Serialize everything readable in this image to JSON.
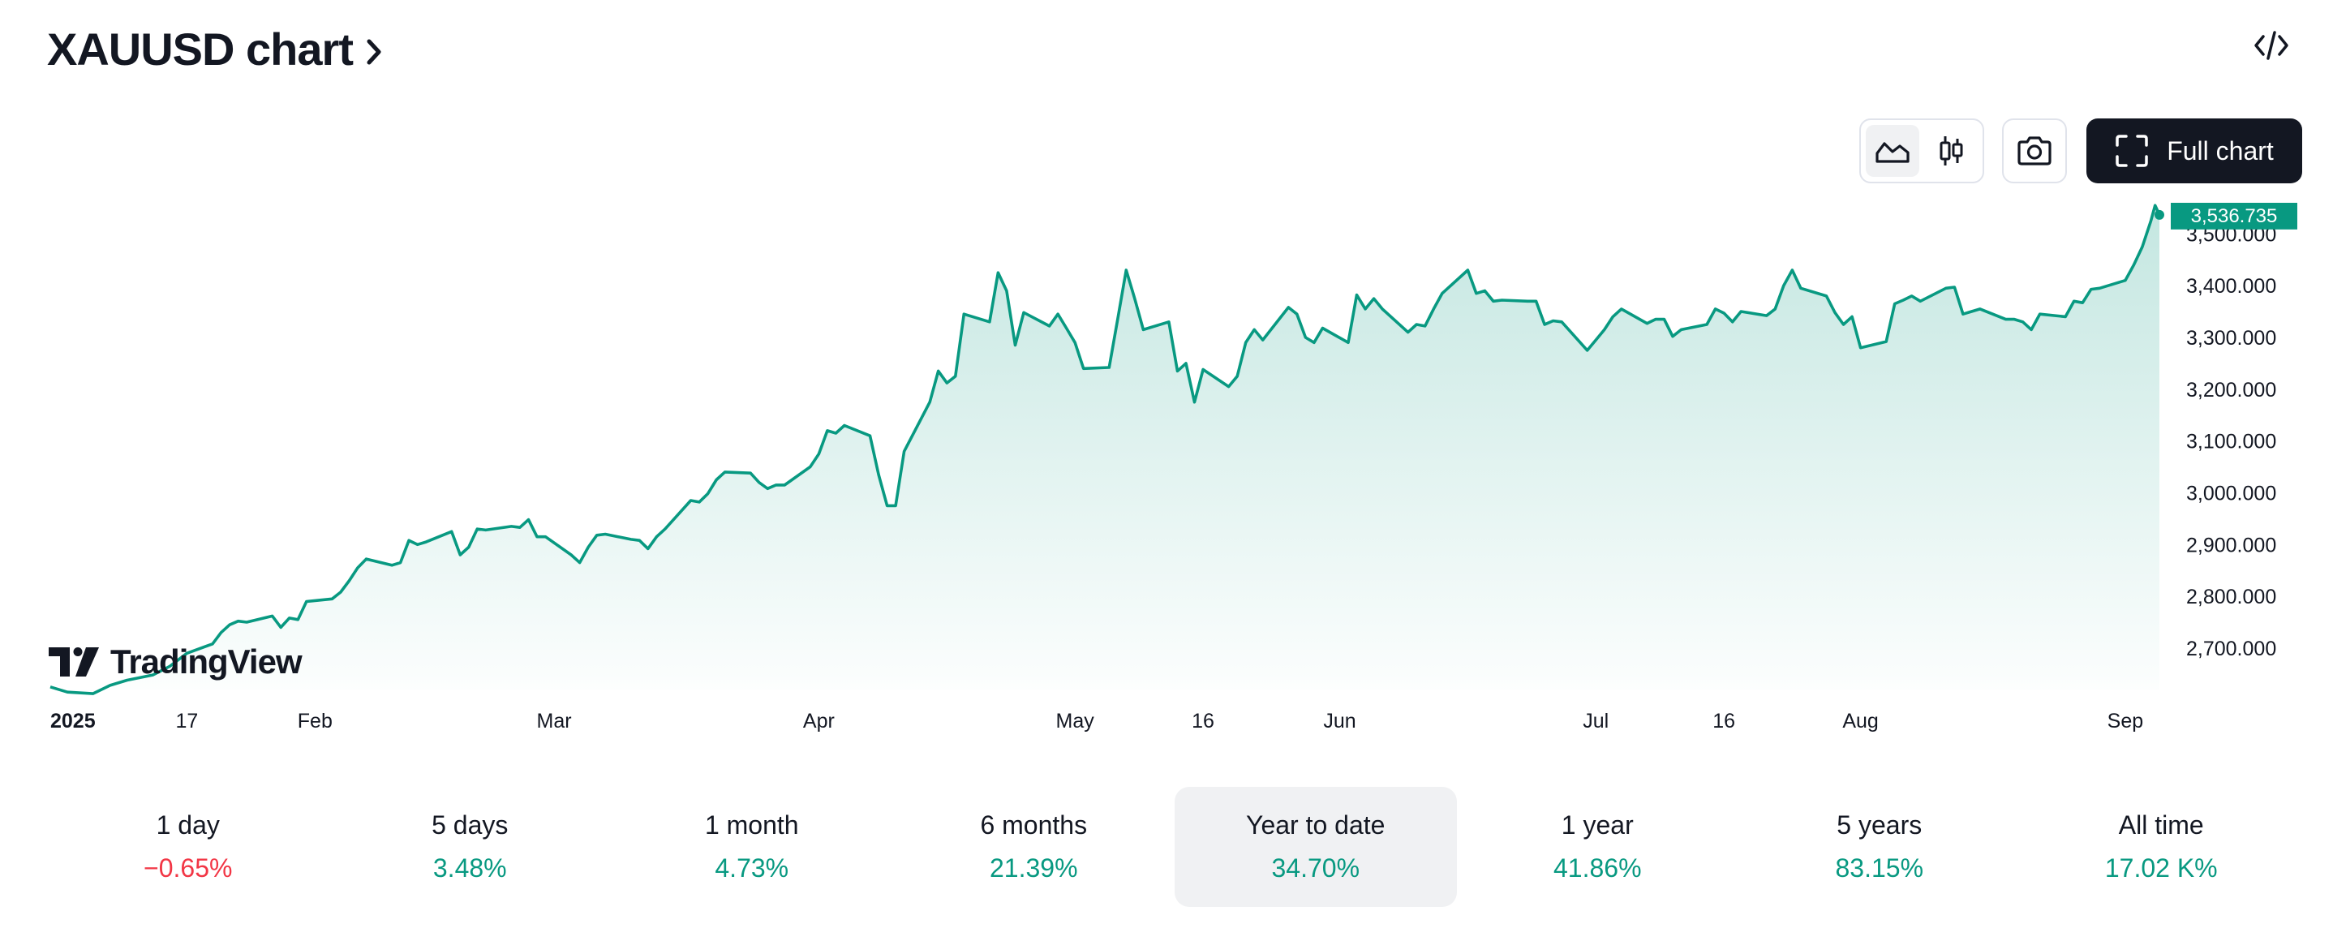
{
  "header": {
    "title": "XAUUSD chart",
    "embed_icon": "code-brackets-icon"
  },
  "toolbar": {
    "chart_type_options": [
      {
        "icon": "area-chart-icon",
        "active": true
      },
      {
        "icon": "candlestick-icon",
        "active": false
      }
    ],
    "snapshot_icon": "camera-icon",
    "full_chart_icon": "fullscreen-icon",
    "full_chart_label": "Full chart"
  },
  "branding": {
    "logo_text": "TradingView",
    "logo_icon": "tradingview-logo-icon"
  },
  "colors": {
    "line": "#089981",
    "area_top": "#089981",
    "positive": "#089981",
    "negative": "#f23645",
    "price_tag_bg": "#089981"
  },
  "chart_data": {
    "type": "area",
    "symbol": "XAUUSD",
    "last_price": 3536.735,
    "last_price_label": "3,536.735",
    "ylim": [
      2620,
      3560
    ],
    "y_ticks": [
      {
        "value": 2700,
        "label": "2,700.000"
      },
      {
        "value": 2800,
        "label": "2,800.000"
      },
      {
        "value": 2900,
        "label": "2,900.000"
      },
      {
        "value": 3000,
        "label": "3,000.000"
      },
      {
        "value": 3100,
        "label": "3,100.000"
      },
      {
        "value": 3200,
        "label": "3,200.000"
      },
      {
        "value": 3300,
        "label": "3,300.000"
      },
      {
        "value": 3400,
        "label": "3,400.000"
      },
      {
        "value": 3500,
        "label": "3,500.000"
      }
    ],
    "x_ticks": [
      {
        "date": "2025-01-01",
        "label": "2025",
        "bold": true
      },
      {
        "date": "2025-01-17",
        "label": "17"
      },
      {
        "date": "2025-02-01",
        "label": "Feb"
      },
      {
        "date": "2025-03-01",
        "label": "Mar"
      },
      {
        "date": "2025-04-01",
        "label": "Apr"
      },
      {
        "date": "2025-05-01",
        "label": "May"
      },
      {
        "date": "2025-05-16",
        "label": "16"
      },
      {
        "date": "2025-06-01",
        "label": "Jun"
      },
      {
        "date": "2025-07-01",
        "label": "Jul"
      },
      {
        "date": "2025-07-16",
        "label": "16"
      },
      {
        "date": "2025-08-01",
        "label": "Aug"
      },
      {
        "date": "2025-09-01",
        "label": "Sep"
      }
    ],
    "x_range": [
      "2025-01-01",
      "2025-09-05"
    ],
    "series": [
      {
        "points": [
          [
            "2025-01-01",
            2625
          ],
          [
            "2025-01-03",
            2615
          ],
          [
            "2025-01-06",
            2612
          ],
          [
            "2025-01-08",
            2628
          ],
          [
            "2025-01-10",
            2638
          ],
          [
            "2025-01-13",
            2648
          ],
          [
            "2025-01-15",
            2665
          ],
          [
            "2025-01-17",
            2690
          ],
          [
            "2025-01-20",
            2708
          ],
          [
            "2025-01-21",
            2730
          ],
          [
            "2025-01-22",
            2745
          ],
          [
            "2025-01-23",
            2752
          ],
          [
            "2025-01-24",
            2750
          ],
          [
            "2025-01-27",
            2762
          ],
          [
            "2025-01-28",
            2740
          ],
          [
            "2025-01-29",
            2758
          ],
          [
            "2025-01-30",
            2755
          ],
          [
            "2025-01-31",
            2790
          ],
          [
            "2025-02-03",
            2795
          ],
          [
            "2025-02-04",
            2808
          ],
          [
            "2025-02-05",
            2830
          ],
          [
            "2025-02-06",
            2855
          ],
          [
            "2025-02-07",
            2872
          ],
          [
            "2025-02-10",
            2860
          ],
          [
            "2025-02-11",
            2865
          ],
          [
            "2025-02-12",
            2908
          ],
          [
            "2025-02-13",
            2900
          ],
          [
            "2025-02-14",
            2905
          ],
          [
            "2025-02-17",
            2925
          ],
          [
            "2025-02-18",
            2880
          ],
          [
            "2025-02-19",
            2895
          ],
          [
            "2025-02-20",
            2930
          ],
          [
            "2025-02-21",
            2928
          ],
          [
            "2025-02-24",
            2935
          ],
          [
            "2025-02-25",
            2933
          ],
          [
            "2025-02-26",
            2948
          ],
          [
            "2025-02-27",
            2915
          ],
          [
            "2025-02-28",
            2915
          ],
          [
            "2025-03-03",
            2880
          ],
          [
            "2025-03-04",
            2865
          ],
          [
            "2025-03-05",
            2895
          ],
          [
            "2025-03-06",
            2918
          ],
          [
            "2025-03-07",
            2920
          ],
          [
            "2025-03-10",
            2910
          ],
          [
            "2025-03-11",
            2908
          ],
          [
            "2025-03-12",
            2892
          ],
          [
            "2025-03-13",
            2915
          ],
          [
            "2025-03-14",
            2930
          ],
          [
            "2025-03-17",
            2985
          ],
          [
            "2025-03-18",
            2982
          ],
          [
            "2025-03-19",
            2998
          ],
          [
            "2025-03-20",
            3025
          ],
          [
            "2025-03-21",
            3040
          ],
          [
            "2025-03-24",
            3038
          ],
          [
            "2025-03-25",
            3020
          ],
          [
            "2025-03-26",
            3008
          ],
          [
            "2025-03-27",
            3015
          ],
          [
            "2025-03-28",
            3015
          ],
          [
            "2025-03-31",
            3050
          ],
          [
            "2025-04-01",
            3075
          ],
          [
            "2025-04-02",
            3120
          ],
          [
            "2025-04-03",
            3115
          ],
          [
            "2025-04-04",
            3130
          ],
          [
            "2025-04-07",
            3110
          ],
          [
            "2025-04-08",
            3035
          ],
          [
            "2025-04-09",
            2975
          ],
          [
            "2025-04-10",
            2975
          ],
          [
            "2025-04-11",
            3080
          ],
          [
            "2025-04-14",
            3175
          ],
          [
            "2025-04-15",
            3235
          ],
          [
            "2025-04-16",
            3212
          ],
          [
            "2025-04-17",
            3225
          ],
          [
            "2025-04-18",
            3345
          ],
          [
            "2025-04-21",
            3330
          ],
          [
            "2025-04-22",
            3425
          ],
          [
            "2025-04-23",
            3390
          ],
          [
            "2025-04-24",
            3285
          ],
          [
            "2025-04-25",
            3348
          ],
          [
            "2025-04-28",
            3322
          ],
          [
            "2025-04-29",
            3345
          ],
          [
            "2025-04-30",
            3318
          ],
          [
            "2025-05-01",
            3290
          ],
          [
            "2025-05-02",
            3240
          ],
          [
            "2025-05-05",
            3242
          ],
          [
            "2025-05-06",
            3335
          ],
          [
            "2025-05-07",
            3430
          ],
          [
            "2025-05-08",
            3375
          ],
          [
            "2025-05-09",
            3315
          ],
          [
            "2025-05-12",
            3330
          ],
          [
            "2025-05-13",
            3235
          ],
          [
            "2025-05-14",
            3250
          ],
          [
            "2025-05-15",
            3175
          ],
          [
            "2025-05-16",
            3238
          ],
          [
            "2025-05-19",
            3205
          ],
          [
            "2025-05-20",
            3225
          ],
          [
            "2025-05-21",
            3290
          ],
          [
            "2025-05-22",
            3315
          ],
          [
            "2025-05-23",
            3295
          ],
          [
            "2025-05-26",
            3358
          ],
          [
            "2025-05-27",
            3345
          ],
          [
            "2025-05-28",
            3300
          ],
          [
            "2025-05-29",
            3290
          ],
          [
            "2025-05-30",
            3318
          ],
          [
            "2025-06-02",
            3290
          ],
          [
            "2025-06-03",
            3382
          ],
          [
            "2025-06-04",
            3355
          ],
          [
            "2025-06-05",
            3375
          ],
          [
            "2025-06-06",
            3355
          ],
          [
            "2025-06-09",
            3310
          ],
          [
            "2025-06-10",
            3325
          ],
          [
            "2025-06-11",
            3322
          ],
          [
            "2025-06-12",
            3355
          ],
          [
            "2025-06-13",
            3385
          ],
          [
            "2025-06-16",
            3430
          ],
          [
            "2025-06-17",
            3385
          ],
          [
            "2025-06-18",
            3390
          ],
          [
            "2025-06-19",
            3370
          ],
          [
            "2025-06-20",
            3372
          ],
          [
            "2025-06-23",
            3370
          ],
          [
            "2025-06-24",
            3370
          ],
          [
            "2025-06-25",
            3325
          ],
          [
            "2025-06-26",
            3332
          ],
          [
            "2025-06-27",
            3330
          ],
          [
            "2025-06-30",
            3275
          ],
          [
            "2025-07-01",
            3295
          ],
          [
            "2025-07-02",
            3315
          ],
          [
            "2025-07-03",
            3340
          ],
          [
            "2025-07-04",
            3355
          ],
          [
            "2025-07-07",
            3327
          ],
          [
            "2025-07-08",
            3335
          ],
          [
            "2025-07-09",
            3335
          ],
          [
            "2025-07-10",
            3302
          ],
          [
            "2025-07-11",
            3315
          ],
          [
            "2025-07-14",
            3325
          ],
          [
            "2025-07-15",
            3355
          ],
          [
            "2025-07-16",
            3347
          ],
          [
            "2025-07-17",
            3330
          ],
          [
            "2025-07-18",
            3350
          ],
          [
            "2025-07-21",
            3342
          ],
          [
            "2025-07-22",
            3355
          ],
          [
            "2025-07-23",
            3400
          ],
          [
            "2025-07-24",
            3430
          ],
          [
            "2025-07-25",
            3395
          ],
          [
            "2025-07-28",
            3380
          ],
          [
            "2025-07-29",
            3348
          ],
          [
            "2025-07-30",
            3325
          ],
          [
            "2025-07-31",
            3340
          ],
          [
            "2025-08-01",
            3280
          ],
          [
            "2025-08-04",
            3292
          ],
          [
            "2025-08-05",
            3365
          ],
          [
            "2025-08-06",
            3372
          ],
          [
            "2025-08-07",
            3380
          ],
          [
            "2025-08-08",
            3370
          ],
          [
            "2025-08-11",
            3395
          ],
          [
            "2025-08-12",
            3397
          ],
          [
            "2025-08-13",
            3345
          ],
          [
            "2025-08-14",
            3350
          ],
          [
            "2025-08-15",
            3355
          ],
          [
            "2025-08-18",
            3335
          ],
          [
            "2025-08-19",
            3335
          ],
          [
            "2025-08-20",
            3330
          ],
          [
            "2025-08-21",
            3315
          ],
          [
            "2025-08-22",
            3345
          ],
          [
            "2025-08-25",
            3340
          ],
          [
            "2025-08-26",
            3370
          ],
          [
            "2025-08-27",
            3367
          ],
          [
            "2025-08-28",
            3393
          ],
          [
            "2025-08-29",
            3395
          ],
          [
            "2025-09-01",
            3410
          ],
          [
            "2025-09-02",
            3440
          ],
          [
            "2025-09-03",
            3475
          ],
          [
            "2025-09-04",
            3525
          ],
          [
            "2025-09-04T12",
            3555
          ],
          [
            "2025-09-05",
            3536.735
          ]
        ]
      }
    ]
  },
  "periods": [
    {
      "label": "1 day",
      "change": "−0.65%",
      "negative": true,
      "active": false
    },
    {
      "label": "5 days",
      "change": "3.48%",
      "negative": false,
      "active": false
    },
    {
      "label": "1 month",
      "change": "4.73%",
      "negative": false,
      "active": false
    },
    {
      "label": "6 months",
      "change": "21.39%",
      "negative": false,
      "active": false
    },
    {
      "label": "Year to date",
      "change": "34.70%",
      "negative": false,
      "active": true
    },
    {
      "label": "1 year",
      "change": "41.86%",
      "negative": false,
      "active": false
    },
    {
      "label": "5 years",
      "change": "83.15%",
      "negative": false,
      "active": false
    },
    {
      "label": "All time",
      "change": "17.02 K%",
      "negative": false,
      "active": false
    }
  ]
}
